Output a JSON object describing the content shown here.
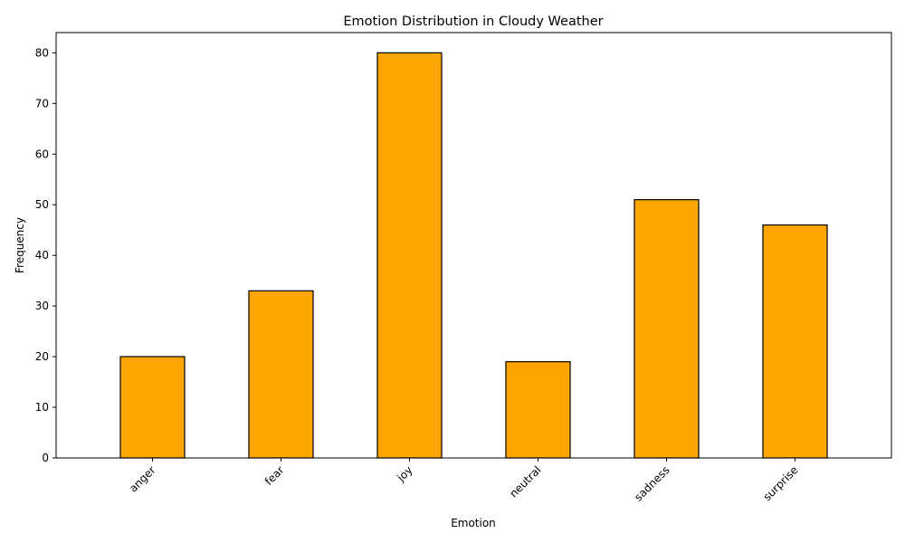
{
  "chart_data": {
    "type": "bar",
    "title": "Emotion Distribution in Cloudy Weather",
    "xlabel": "Emotion",
    "ylabel": "Frequency",
    "categories": [
      "anger",
      "fear",
      "joy",
      "neutral",
      "sadness",
      "surprise"
    ],
    "values": [
      20,
      33,
      80,
      19,
      51,
      46
    ],
    "yticks": [
      0,
      10,
      20,
      30,
      40,
      50,
      60,
      70,
      80
    ],
    "ylim": [
      0,
      84
    ],
    "xtick_rotation_deg": 45,
    "grid": false,
    "legend": "none",
    "colors": {
      "bar_fill": "#FFA500",
      "bar_edge": "#000000"
    }
  }
}
